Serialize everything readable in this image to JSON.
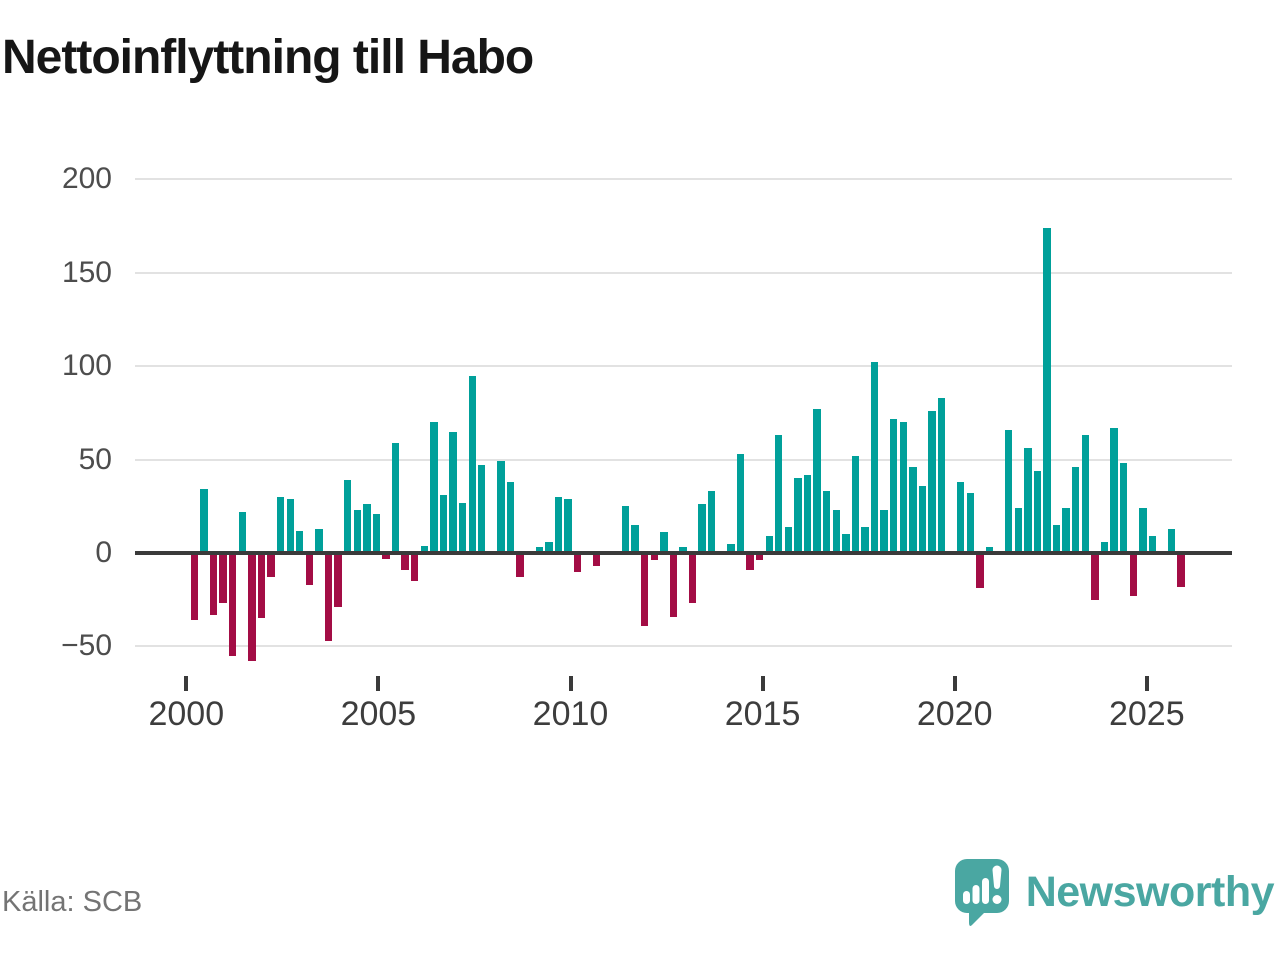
{
  "title": "Nettoinflyttning till Habo",
  "source": "Källa: SCB",
  "logo": {
    "text": "Newsworthy",
    "icon": "bar-chart-speech-bubble-icon"
  },
  "colors": {
    "positive": "#00a09a",
    "negative": "#a30d45",
    "axis": "#3a3a3a",
    "grid": "#e2e2e2",
    "tick_label": "#4d4d4d",
    "logo": "#4aa7a2"
  },
  "chart_data": {
    "type": "bar",
    "title": "Nettoinflyttning till Habo",
    "frequency": "quarterly",
    "start_year": 2000,
    "grid": true,
    "ylim": [
      -75,
      215
    ],
    "y_ticks": [
      {
        "label": "200",
        "value": 200
      },
      {
        "label": "150",
        "value": 150
      },
      {
        "label": "100",
        "value": 100
      },
      {
        "label": "50",
        "value": 50
      },
      {
        "label": "0",
        "value": 0
      },
      {
        "label": "−50",
        "value": -50
      }
    ],
    "x_ticks": [
      {
        "label": "2000",
        "year": 2000
      },
      {
        "label": "2005",
        "year": 2005
      },
      {
        "label": "2010",
        "year": 2010
      },
      {
        "label": "2015",
        "year": 2015
      },
      {
        "label": "2020",
        "year": 2020
      },
      {
        "label": "2025",
        "year": 2025
      }
    ],
    "series_by_year": [
      {
        "year": 2000,
        "quarters": [
          -36,
          34,
          -33,
          -27
        ]
      },
      {
        "year": 2001,
        "quarters": [
          -55,
          22,
          -58,
          -35
        ]
      },
      {
        "year": 2002,
        "quarters": [
          -13,
          30,
          29,
          12
        ]
      },
      {
        "year": 2003,
        "quarters": [
          -17,
          13,
          -47,
          -29
        ]
      },
      {
        "year": 2004,
        "quarters": [
          39,
          23,
          26,
          21
        ]
      },
      {
        "year": 2005,
        "quarters": [
          -3,
          59,
          -9,
          -15
        ]
      },
      {
        "year": 2006,
        "quarters": [
          4,
          70,
          31,
          65
        ]
      },
      {
        "year": 2007,
        "quarters": [
          27,
          95,
          47,
          0
        ]
      },
      {
        "year": 2008,
        "quarters": [
          49,
          38,
          -13,
          0
        ]
      },
      {
        "year": 2009,
        "quarters": [
          3,
          6,
          30,
          29
        ]
      },
      {
        "year": 2010,
        "quarters": [
          -10,
          0,
          -7,
          0
        ]
      },
      {
        "year": 2011,
        "quarters": [
          0,
          25,
          15,
          -39
        ]
      },
      {
        "year": 2012,
        "quarters": [
          -4,
          11,
          -34,
          3
        ]
      },
      {
        "year": 2013,
        "quarters": [
          -27,
          26,
          33,
          0
        ]
      },
      {
        "year": 2014,
        "quarters": [
          5,
          53,
          -9,
          -4
        ]
      },
      {
        "year": 2015,
        "quarters": [
          9,
          63,
          14,
          40
        ]
      },
      {
        "year": 2016,
        "quarters": [
          42,
          77,
          33,
          23
        ]
      },
      {
        "year": 2017,
        "quarters": [
          10,
          52,
          14,
          102
        ]
      },
      {
        "year": 2018,
        "quarters": [
          23,
          72,
          70,
          46
        ]
      },
      {
        "year": 2019,
        "quarters": [
          36,
          76,
          83,
          0
        ]
      },
      {
        "year": 2020,
        "quarters": [
          38,
          32,
          -19,
          3
        ]
      },
      {
        "year": 2021,
        "quarters": [
          0,
          66,
          24,
          56
        ]
      },
      {
        "year": 2022,
        "quarters": [
          44,
          174,
          15,
          24
        ]
      },
      {
        "year": 2023,
        "quarters": [
          46,
          63,
          -25,
          6
        ]
      },
      {
        "year": 2024,
        "quarters": [
          67,
          48,
          -23,
          24
        ]
      },
      {
        "year": 2025,
        "quarters": [
          9,
          0,
          13,
          -18
        ]
      }
    ]
  }
}
